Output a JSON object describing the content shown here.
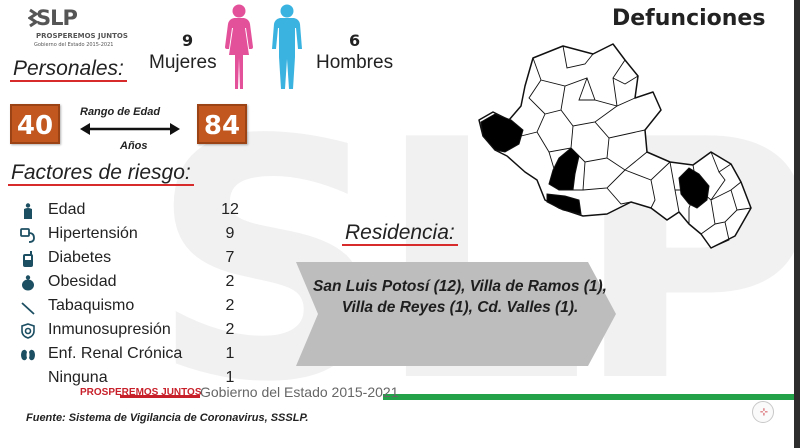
{
  "logo": {
    "main": "SLP",
    "tagline": "PROSPEREMOS JUNTOS",
    "government": "Gobierno del Estado 2015-2021"
  },
  "title": "Defunciones",
  "gender": {
    "women_count": "9",
    "women_label": "Mujeres",
    "women_color": "#e4519b",
    "men_count": "6",
    "men_label": "Hombres",
    "men_color": "#3bb3e0"
  },
  "personal": {
    "heading": "Personales:",
    "age_min": "40",
    "age_max": "84",
    "range_label": "Rango de Edad",
    "range_unit": "Años"
  },
  "risk_factors": {
    "heading": "Factores de riesgo:",
    "items": [
      {
        "label": "Edad",
        "value": "12",
        "icon": "elderly-person-icon"
      },
      {
        "label": "Hipertensión",
        "value": "9",
        "icon": "blood-pressure-icon"
      },
      {
        "label": "Diabetes",
        "value": "7",
        "icon": "glucometer-icon"
      },
      {
        "label": "Obesidad",
        "value": "2",
        "icon": "obese-person-icon"
      },
      {
        "label": "Tabaquismo",
        "value": "2",
        "icon": "cigarette-icon"
      },
      {
        "label": "Inmunosupresión",
        "value": "2",
        "icon": "virus-shield-icon"
      },
      {
        "label": "Enf. Renal Crónica",
        "value": "1",
        "icon": "kidneys-icon"
      },
      {
        "label": "Ninguna",
        "value": "1",
        "icon": ""
      }
    ]
  },
  "residence": {
    "heading": "Residencia:",
    "text": "San Luis Potosí (12), Villa de Ramos (1), Villa de Reyes (1), Cd. Valles (1)."
  },
  "footer": {
    "tagline": "PROSPEREMOS JUNTOS",
    "government": "Gobierno del Estado 2015-2021",
    "source": "Fuente: Sistema de Vigilancia de Coronavirus, SSSLP."
  },
  "colors": {
    "accent_red": "#d72a2a",
    "age_box": "#c2571f",
    "footer_green": "#24a24a",
    "icon_teal": "#1d4f63"
  }
}
